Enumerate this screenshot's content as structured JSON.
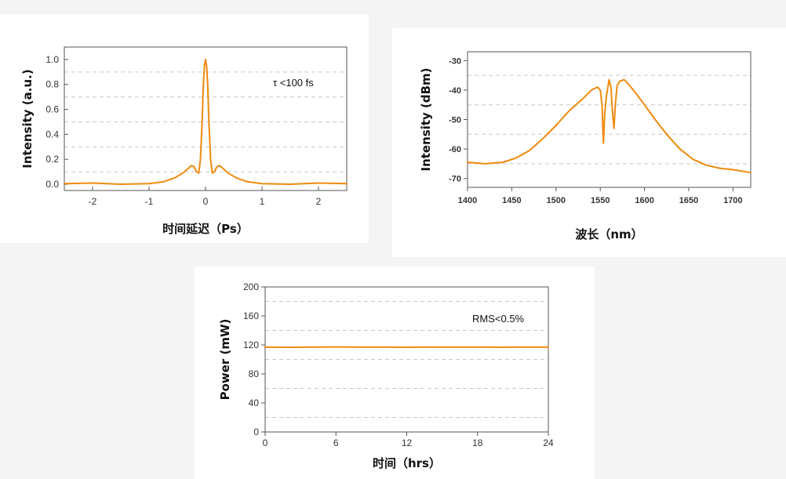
{
  "chart_data": [
    {
      "id": "autocorr",
      "type": "line",
      "xlabel": "时间延迟（Ps）",
      "ylabel": "Intensity (a.u.)",
      "xlim": [
        -2.5,
        2.5
      ],
      "ylim": [
        -0.05,
        1.1
      ],
      "xticks": [
        -2,
        -1,
        0,
        1,
        2
      ],
      "yticks": [
        0.0,
        0.2,
        0.4,
        0.6,
        0.8,
        1.0
      ],
      "ytick_labels": [
        "0.0",
        "0.2",
        "0.4",
        "0.6",
        "0.8",
        "1.0"
      ],
      "grid_y": [
        0.1,
        0.3,
        0.5,
        0.7,
        0.9
      ],
      "grid": true,
      "annotation": "τ <100 fs",
      "color": "#f08a0e",
      "series": [
        {
          "x": [
            -2.5,
            -2.0,
            -1.5,
            -1.0,
            -0.75,
            -0.55,
            -0.4,
            -0.3,
            -0.25,
            -0.2,
            -0.16,
            -0.12,
            -0.09,
            -0.06,
            -0.04,
            -0.02,
            0.0,
            0.02,
            0.04,
            0.06,
            0.09,
            0.12,
            0.16,
            0.2,
            0.25,
            0.3,
            0.4,
            0.55,
            0.75,
            1.0,
            1.5,
            2.0,
            2.5
          ],
          "y": [
            0.005,
            0.01,
            0.0,
            0.005,
            0.02,
            0.05,
            0.09,
            0.13,
            0.15,
            0.14,
            0.1,
            0.09,
            0.2,
            0.5,
            0.78,
            0.95,
            1.0,
            0.95,
            0.78,
            0.5,
            0.2,
            0.09,
            0.1,
            0.14,
            0.15,
            0.13,
            0.09,
            0.05,
            0.02,
            0.005,
            0.0,
            0.01,
            0.005
          ]
        }
      ]
    },
    {
      "id": "spectrum",
      "type": "line",
      "xlabel": "波长（nm）",
      "ylabel": "Intensity (dBm)",
      "xlim": [
        1400,
        1720
      ],
      "ylim": [
        -73,
        -27
      ],
      "xticks": [
        1400,
        1450,
        1500,
        1550,
        1600,
        1650,
        1700
      ],
      "yticks": [
        -70,
        -60,
        -50,
        -40,
        -30
      ],
      "grid_y": [
        -65,
        -55,
        -45,
        -35
      ],
      "grid": true,
      "color": "#f08a0e",
      "series": [
        {
          "x": [
            1400,
            1420,
            1440,
            1455,
            1470,
            1485,
            1500,
            1515,
            1530,
            1540,
            1547,
            1550,
            1552,
            1553.5,
            1555,
            1557,
            1560,
            1562,
            1564,
            1565.5,
            1567,
            1569,
            1572,
            1577,
            1582,
            1590,
            1600,
            1612,
            1625,
            1640,
            1655,
            1670,
            1685,
            1700,
            1720
          ],
          "y": [
            -64.5,
            -65,
            -64.5,
            -63,
            -60.5,
            -56.5,
            -52,
            -47,
            -43,
            -40,
            -39,
            -40,
            -45,
            -58,
            -48,
            -42,
            -36.5,
            -39,
            -48,
            -53,
            -45,
            -38.5,
            -37,
            -36.5,
            -38,
            -41,
            -45,
            -50,
            -55,
            -60,
            -63.5,
            -65.5,
            -66.5,
            -67,
            -68
          ]
        }
      ]
    },
    {
      "id": "power",
      "type": "line",
      "xlabel": "时间（hrs）",
      "ylabel": "Power (mW)",
      "xlim": [
        0,
        24
      ],
      "ylim": [
        0,
        200
      ],
      "xticks": [
        0,
        6,
        12,
        18,
        24
      ],
      "yticks": [
        0,
        40,
        80,
        120,
        160,
        200
      ],
      "grid_y": [
        20,
        60,
        100,
        140,
        180
      ],
      "grid": true,
      "annotation": "RMS<0.5%",
      "color": "#f08a0e",
      "series": [
        {
          "x": [
            0,
            2,
            4,
            6,
            8,
            10,
            12,
            14,
            16,
            18,
            20,
            22,
            24
          ],
          "y": [
            117,
            116.8,
            117,
            117.2,
            117,
            117.1,
            116.9,
            117,
            117.1,
            117,
            116.9,
            117,
            117
          ]
        }
      ]
    }
  ]
}
